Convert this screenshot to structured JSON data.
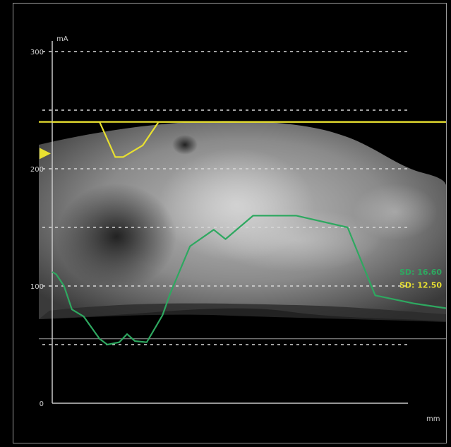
{
  "chart_data": {
    "type": "line",
    "ylabel": "mA",
    "xlabel": "mm",
    "ylim": [
      0,
      300
    ],
    "xlim": [
      0,
      100
    ],
    "yticks": [
      {
        "value": 0,
        "label": "0"
      },
      {
        "value": 100,
        "label": "100"
      },
      {
        "value": 200,
        "label": "200"
      },
      {
        "value": 300,
        "label": "300"
      }
    ],
    "dashed_gridlines": [
      50,
      100,
      150,
      200,
      250,
      300
    ],
    "reference_lines": [
      240,
      55
    ],
    "marker": {
      "value": 213,
      "color": "#e8e030"
    },
    "series": [
      {
        "name": "",
        "color": "#e8e030",
        "x": [
          0,
          12,
          16,
          18,
          23,
          27,
          31,
          100
        ],
        "y": [
          240,
          240,
          210,
          210,
          220,
          240,
          240,
          240
        ]
      },
      {
        "name": "",
        "color": "#2ea860",
        "x": [
          0,
          1,
          3,
          5,
          8,
          12,
          14,
          17,
          19,
          21,
          24,
          28,
          30,
          35,
          41,
          44,
          51,
          62,
          75,
          82,
          92,
          100
        ],
        "y": [
          112,
          110,
          100,
          80,
          74,
          55,
          50,
          52,
          59,
          53,
          52,
          75,
          94,
          134,
          148,
          140,
          160,
          160,
          150,
          92,
          85,
          81
        ]
      }
    ],
    "annotations": [
      {
        "text": "SD: 16.60",
        "color": "#2ea860",
        "value": 112
      },
      {
        "text": "SD: 12.50",
        "color": "#e8e030",
        "value": 101
      }
    ]
  }
}
